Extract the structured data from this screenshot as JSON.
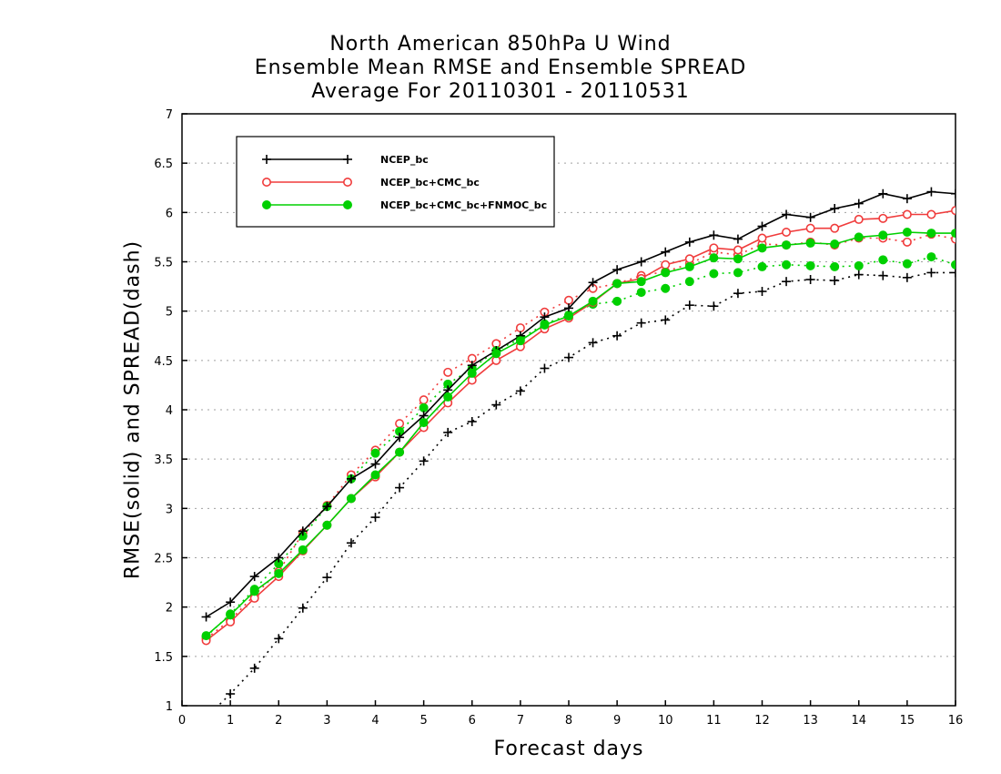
{
  "chart_data": {
    "type": "line",
    "title": [
      "North American 850hPa U Wind",
      "Ensemble Mean RMSE and Ensemble SPREAD",
      "Average For 20110301 - 20110531"
    ],
    "xlabel": "Forecast days",
    "ylabel": "RMSE(solid) and SPREAD(dash)",
    "xlim": [
      0,
      16
    ],
    "ylim": [
      1,
      7
    ],
    "xticks": [
      "0",
      "1",
      "2",
      "3",
      "4",
      "5",
      "6",
      "7",
      "8",
      "9",
      "10",
      "11",
      "12",
      "13",
      "14",
      "15",
      "16"
    ],
    "yticks": [
      "1",
      "1.5",
      "2",
      "2.5",
      "3",
      "3.5",
      "4",
      "4.5",
      "5",
      "5.5",
      "6",
      "6.5",
      "7"
    ],
    "grid": true,
    "legend_position": "top-left",
    "x": [
      0.5,
      1,
      1.5,
      2,
      2.5,
      3,
      3.5,
      4,
      4.5,
      5,
      5.5,
      6,
      6.5,
      7,
      7.5,
      8,
      8.5,
      9,
      9.5,
      10,
      10.5,
      11,
      11.5,
      12,
      12.5,
      13,
      13.5,
      14,
      14.5,
      15,
      15.5,
      16
    ],
    "series": [
      {
        "name": "NCEP_bc",
        "color": "#000000",
        "marker": "plus",
        "metric": "RMSE",
        "linestyle": "solid",
        "values": [
          1.9,
          2.05,
          2.31,
          2.5,
          2.77,
          3.02,
          3.3,
          3.45,
          3.72,
          3.94,
          4.2,
          4.45,
          4.6,
          4.75,
          4.94,
          5.03,
          5.29,
          5.42,
          5.5,
          5.6,
          5.7,
          5.77,
          5.73,
          5.86,
          5.98,
          5.95,
          6.04,
          6.09,
          6.19,
          6.14,
          6.21,
          6.19
        ]
      },
      {
        "name": "NCEP_bc+CMC_bc",
        "color": "#f03c3c",
        "marker": "open-circle",
        "metric": "RMSE",
        "linestyle": "solid",
        "values": [
          1.66,
          1.85,
          2.09,
          2.31,
          2.57,
          2.83,
          3.1,
          3.32,
          3.57,
          3.82,
          4.07,
          4.3,
          4.5,
          4.64,
          4.82,
          4.93,
          5.09,
          5.28,
          5.33,
          5.47,
          5.53,
          5.64,
          5.62,
          5.74,
          5.8,
          5.84,
          5.84,
          5.93,
          5.94,
          5.98,
          5.98,
          6.02
        ]
      },
      {
        "name": "NCEP_bc+CMC_bc+FNMOC_bc",
        "color": "#00d000",
        "marker": "filled-circle",
        "metric": "RMSE",
        "linestyle": "solid",
        "values": [
          1.71,
          1.92,
          2.16,
          2.34,
          2.58,
          2.83,
          3.1,
          3.34,
          3.57,
          3.87,
          4.13,
          4.37,
          4.57,
          4.7,
          4.86,
          4.95,
          5.1,
          5.28,
          5.3,
          5.39,
          5.45,
          5.54,
          5.53,
          5.64,
          5.67,
          5.69,
          5.68,
          5.75,
          5.77,
          5.8,
          5.79,
          5.79
        ]
      },
      {
        "name": "NCEP_bc",
        "color": "#000000",
        "marker": "plus",
        "metric": "SPREAD",
        "linestyle": "dash",
        "values": [
          0.88,
          1.12,
          1.38,
          1.68,
          1.99,
          2.3,
          2.65,
          2.91,
          3.21,
          3.48,
          3.77,
          3.88,
          4.05,
          4.19,
          4.42,
          4.53,
          4.68,
          4.75,
          4.88,
          4.91,
          5.06,
          5.05,
          5.18,
          5.2,
          5.3,
          5.32,
          5.31,
          5.37,
          5.36,
          5.34,
          5.39,
          5.39
        ]
      },
      {
        "name": "NCEP_bc+CMC_bc",
        "color": "#f03c3c",
        "marker": "open-circle",
        "metric": "SPREAD",
        "linestyle": "dash",
        "values": [
          1.68,
          1.87,
          2.12,
          2.36,
          2.75,
          3.03,
          3.34,
          3.59,
          3.86,
          4.1,
          4.38,
          4.52,
          4.67,
          4.83,
          4.99,
          5.11,
          5.23,
          5.28,
          5.36,
          5.4,
          5.48,
          5.6,
          5.57,
          5.68,
          5.67,
          5.7,
          5.67,
          5.74,
          5.74,
          5.7,
          5.78,
          5.73
        ]
      },
      {
        "name": "NCEP_bc+CMC_bc+FNMOC_bc",
        "color": "#00d000",
        "marker": "filled-circle",
        "metric": "SPREAD",
        "linestyle": "dash",
        "values": [
          1.7,
          1.93,
          2.18,
          2.44,
          2.72,
          3.02,
          3.3,
          3.56,
          3.78,
          4.02,
          4.26,
          4.42,
          4.6,
          4.72,
          4.87,
          4.96,
          5.07,
          5.1,
          5.19,
          5.23,
          5.3,
          5.38,
          5.39,
          5.45,
          5.47,
          5.46,
          5.45,
          5.46,
          5.52,
          5.48,
          5.55,
          5.47
        ]
      }
    ],
    "legend": [
      "NCEP_bc",
      "NCEP_bc+CMC_bc",
      "NCEP_bc+CMC_bc+FNMOC_bc"
    ]
  }
}
